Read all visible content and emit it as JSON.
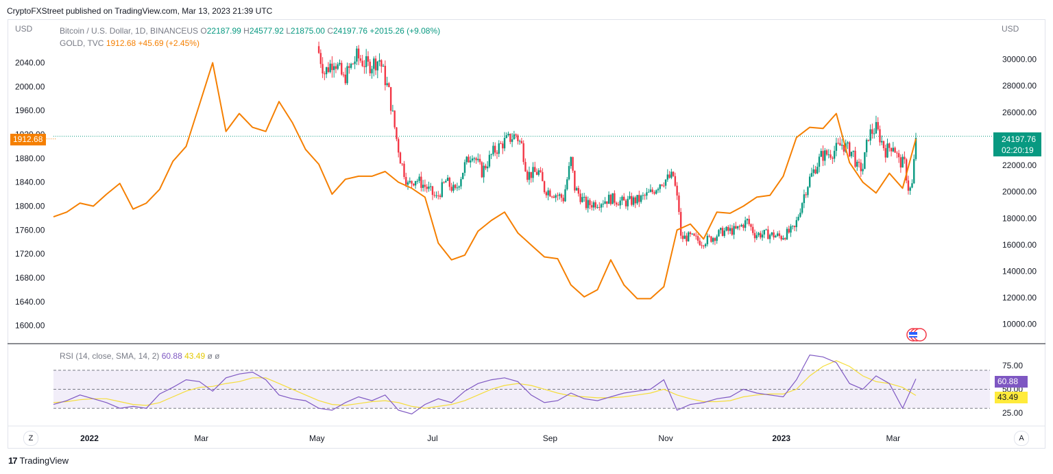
{
  "publisher_line": "CryptoFXStreet published on TradingView.com, Mar 13, 2023 21:39 UTC",
  "footer": {
    "brand": "TradingView",
    "logo_glyph": "17"
  },
  "buttons": {
    "left_z": "Z",
    "right_a": "A"
  },
  "legend": {
    "main_title": "Bitcoin / U.S. Dollar, 1D, BINANCEUS",
    "o_label": "O",
    "o_value": "22187.99",
    "h_label": "H",
    "h_value": "24577.92",
    "l_label": "L",
    "l_value": "21875.00",
    "c_label": "C",
    "c_value": "24197.76",
    "change": "+2015.26 (+9.08%)",
    "gold_title": "GOLD, TVC",
    "gold_value": "1912.68",
    "gold_change": "+45.69 (+2.45%)",
    "rsi_title": "RSI (14, close, SMA, 14, 2)",
    "rsi_value": "60.88",
    "rsi_ma_value": "43.49",
    "rsi_extra": "ø ø"
  },
  "colors": {
    "up": "#089981",
    "down": "#f23645",
    "gold": "#f57f00",
    "rsi": "#7e57c2",
    "rsi_ma": "#f5dd3a",
    "rsi_band": "#ede7f6"
  },
  "chart_data": [
    {
      "type": "candlestick",
      "series_name": "Bitcoin / U.S. Dollar, 1D, BINANCEUS",
      "y_axis_label": "USD",
      "y_axis_side": "right",
      "ylim": [
        9000,
        32000
      ],
      "y_ticks": [
        "30000.00",
        "28000.00",
        "26000.00",
        "24000.00",
        "22000.00",
        "20000.00",
        "18000.00",
        "16000.00",
        "14000.00",
        "12000.00",
        "10000.00"
      ],
      "x_ticks": [
        "2022",
        "Mar",
        "May",
        "Jul",
        "Sep",
        "Nov",
        "2023",
        "Mar"
      ],
      "last_price": "24197.76",
      "countdown": "02:20:19",
      "close_path": [
        [
          "2022-05-01",
          31000
        ],
        [
          "2022-05-05",
          29000
        ],
        [
          "2022-05-10",
          30000
        ],
        [
          "2022-05-15",
          28500
        ],
        [
          "2022-05-22",
          30200
        ],
        [
          "2022-05-28",
          29500
        ],
        [
          "2022-06-03",
          30000
        ],
        [
          "2022-06-08",
          27500
        ],
        [
          "2022-06-12",
          24000
        ],
        [
          "2022-06-14",
          22500
        ],
        [
          "2022-06-18",
          20500
        ],
        [
          "2022-06-22",
          21000
        ],
        [
          "2022-06-28",
          20300
        ],
        [
          "2022-07-03",
          19500
        ],
        [
          "2022-07-08",
          20800
        ],
        [
          "2022-07-13",
          20000
        ],
        [
          "2022-07-18",
          22000
        ],
        [
          "2022-07-22",
          23000
        ],
        [
          "2022-07-27",
          21500
        ],
        [
          "2022-08-02",
          23000
        ],
        [
          "2022-08-08",
          23800
        ],
        [
          "2022-08-14",
          24300
        ],
        [
          "2022-08-17",
          23500
        ],
        [
          "2022-08-20",
          21300
        ],
        [
          "2022-08-26",
          21500
        ],
        [
          "2022-08-29",
          20200
        ],
        [
          "2022-09-03",
          19900
        ],
        [
          "2022-09-08",
          19500
        ],
        [
          "2022-09-12",
          22400
        ],
        [
          "2022-09-14",
          20300
        ],
        [
          "2022-09-20",
          19000
        ],
        [
          "2022-09-26",
          19200
        ],
        [
          "2022-10-03",
          19500
        ],
        [
          "2022-10-10",
          19200
        ],
        [
          "2022-10-18",
          19400
        ],
        [
          "2022-10-25",
          20000
        ],
        [
          "2022-10-29",
          20700
        ],
        [
          "2022-11-05",
          21200
        ],
        [
          "2022-11-08",
          18600
        ],
        [
          "2022-11-09",
          16500
        ],
        [
          "2022-11-14",
          16600
        ],
        [
          "2022-11-20",
          16200
        ],
        [
          "2022-11-25",
          16500
        ],
        [
          "2022-12-01",
          17000
        ],
        [
          "2022-12-08",
          17100
        ],
        [
          "2022-12-14",
          17800
        ],
        [
          "2022-12-18",
          16800
        ],
        [
          "2022-12-25",
          16800
        ],
        [
          "2023-01-01",
          16600
        ],
        [
          "2023-01-08",
          17200
        ],
        [
          "2023-01-13",
          19800
        ],
        [
          "2023-01-16",
          21000
        ],
        [
          "2023-01-22",
          22700
        ],
        [
          "2023-01-28",
          23000
        ],
        [
          "2023-02-02",
          23600
        ],
        [
          "2023-02-08",
          22900
        ],
        [
          "2023-02-10",
          21800
        ],
        [
          "2023-02-13",
          21800
        ],
        [
          "2023-02-16",
          24300
        ],
        [
          "2023-02-20",
          24800
        ],
        [
          "2023-02-25",
          23100
        ],
        [
          "2023-03-01",
          23600
        ],
        [
          "2023-03-04",
          22300
        ],
        [
          "2023-03-07",
          22100
        ],
        [
          "2023-03-09",
          20300
        ],
        [
          "2023-03-10",
          20200
        ],
        [
          "2023-03-11",
          20500
        ],
        [
          "2023-03-12",
          22200
        ],
        [
          "2023-03-13",
          24197.76
        ]
      ]
    },
    {
      "type": "line",
      "series_name": "GOLD, TVC",
      "y_axis_label": "USD",
      "y_axis_side": "left",
      "ylim": [
        1580,
        2090
      ],
      "y_ticks": [
        "2040.00",
        "2000.00",
        "1960.00",
        "1920.00",
        "1880.00",
        "1840.00",
        "1800.00",
        "1760.00",
        "1720.00",
        "1680.00",
        "1640.00",
        "1600.00"
      ],
      "last_price": "1912.68",
      "x": [
        "2021-12-13",
        "2021-12-20",
        "2021-12-27",
        "2022-01-03",
        "2022-01-10",
        "2022-01-17",
        "2022-01-24",
        "2022-01-31",
        "2022-02-07",
        "2022-02-14",
        "2022-02-21",
        "2022-02-28",
        "2022-03-07",
        "2022-03-14",
        "2022-03-21",
        "2022-03-28",
        "2022-04-04",
        "2022-04-11",
        "2022-04-18",
        "2022-04-25",
        "2022-05-02",
        "2022-05-09",
        "2022-05-16",
        "2022-05-23",
        "2022-05-30",
        "2022-06-06",
        "2022-06-13",
        "2022-06-20",
        "2022-06-27",
        "2022-07-04",
        "2022-07-11",
        "2022-07-18",
        "2022-07-25",
        "2022-08-01",
        "2022-08-08",
        "2022-08-15",
        "2022-08-22",
        "2022-08-29",
        "2022-09-05",
        "2022-09-12",
        "2022-09-19",
        "2022-09-26",
        "2022-10-03",
        "2022-10-10",
        "2022-10-17",
        "2022-10-24",
        "2022-10-31",
        "2022-11-07",
        "2022-11-14",
        "2022-11-21",
        "2022-11-28",
        "2022-12-05",
        "2022-12-12",
        "2022-12-19",
        "2022-12-26",
        "2023-01-02",
        "2023-01-09",
        "2023-01-16",
        "2023-01-23",
        "2023-01-30",
        "2023-02-06",
        "2023-02-13",
        "2023-02-20",
        "2023-02-27",
        "2023-03-06",
        "2023-03-13"
      ],
      "values": [
        1782,
        1790,
        1805,
        1800,
        1820,
        1838,
        1795,
        1805,
        1828,
        1875,
        1900,
        1970,
        2040,
        1925,
        1955,
        1932,
        1925,
        1975,
        1940,
        1895,
        1870,
        1820,
        1845,
        1850,
        1850,
        1858,
        1840,
        1830,
        1815,
        1738,
        1710,
        1718,
        1758,
        1776,
        1790,
        1755,
        1735,
        1715,
        1712,
        1668,
        1648,
        1660,
        1710,
        1668,
        1645,
        1645,
        1665,
        1760,
        1770,
        1745,
        1790,
        1788,
        1800,
        1815,
        1818,
        1850,
        1915,
        1932,
        1930,
        1955,
        1873,
        1840,
        1822,
        1855,
        1830,
        1912.68
      ]
    },
    {
      "type": "line",
      "series_name": "RSI (14, close, SMA, 14, 2)",
      "ylim": [
        15,
        95
      ],
      "y_ticks": [
        "75.00",
        "50.00",
        "25.00"
      ],
      "band_lines": [
        70,
        50,
        30
      ],
      "rsi_value": "60.88",
      "ma_value": "43.49",
      "x": [
        "2021-12-13",
        "2021-12-20",
        "2021-12-27",
        "2022-01-03",
        "2022-01-10",
        "2022-01-17",
        "2022-01-24",
        "2022-01-31",
        "2022-02-07",
        "2022-02-14",
        "2022-02-21",
        "2022-02-28",
        "2022-03-07",
        "2022-03-14",
        "2022-03-21",
        "2022-03-28",
        "2022-04-04",
        "2022-04-11",
        "2022-04-18",
        "2022-04-25",
        "2022-05-02",
        "2022-05-09",
        "2022-05-16",
        "2022-05-23",
        "2022-05-30",
        "2022-06-06",
        "2022-06-13",
        "2022-06-20",
        "2022-06-27",
        "2022-07-04",
        "2022-07-11",
        "2022-07-18",
        "2022-07-25",
        "2022-08-01",
        "2022-08-08",
        "2022-08-15",
        "2022-08-22",
        "2022-08-29",
        "2022-09-05",
        "2022-09-12",
        "2022-09-19",
        "2022-09-26",
        "2022-10-03",
        "2022-10-10",
        "2022-10-17",
        "2022-10-24",
        "2022-10-31",
        "2022-11-07",
        "2022-11-14",
        "2022-11-21",
        "2022-11-28",
        "2022-12-05",
        "2022-12-12",
        "2022-12-19",
        "2022-12-26",
        "2023-01-02",
        "2023-01-09",
        "2023-01-16",
        "2023-01-23",
        "2023-01-30",
        "2023-02-06",
        "2023-02-13",
        "2023-02-20",
        "2023-02-27",
        "2023-03-06",
        "2023-03-13"
      ],
      "rsi": [
        34,
        38,
        44,
        40,
        36,
        30,
        32,
        30,
        45,
        52,
        60,
        58,
        48,
        62,
        66,
        68,
        60,
        44,
        40,
        38,
        30,
        28,
        36,
        42,
        38,
        44,
        28,
        24,
        34,
        40,
        36,
        48,
        56,
        60,
        62,
        58,
        44,
        36,
        38,
        46,
        40,
        38,
        42,
        46,
        48,
        50,
        60,
        28,
        34,
        36,
        40,
        42,
        50,
        46,
        44,
        42,
        60,
        86,
        84,
        78,
        56,
        50,
        64,
        56,
        30,
        60.88
      ],
      "ma": [
        36,
        37,
        39,
        40,
        40,
        37,
        34,
        33,
        36,
        42,
        48,
        52,
        53,
        56,
        58,
        62,
        62,
        56,
        50,
        44,
        38,
        34,
        33,
        35,
        37,
        38,
        36,
        32,
        30,
        32,
        34,
        38,
        44,
        50,
        54,
        56,
        54,
        50,
        46,
        43,
        42,
        41,
        41,
        42,
        44,
        46,
        50,
        44,
        40,
        37,
        37,
        38,
        42,
        44,
        45,
        45,
        50,
        64,
        74,
        80,
        74,
        64,
        58,
        56,
        52,
        43.49
      ]
    }
  ]
}
